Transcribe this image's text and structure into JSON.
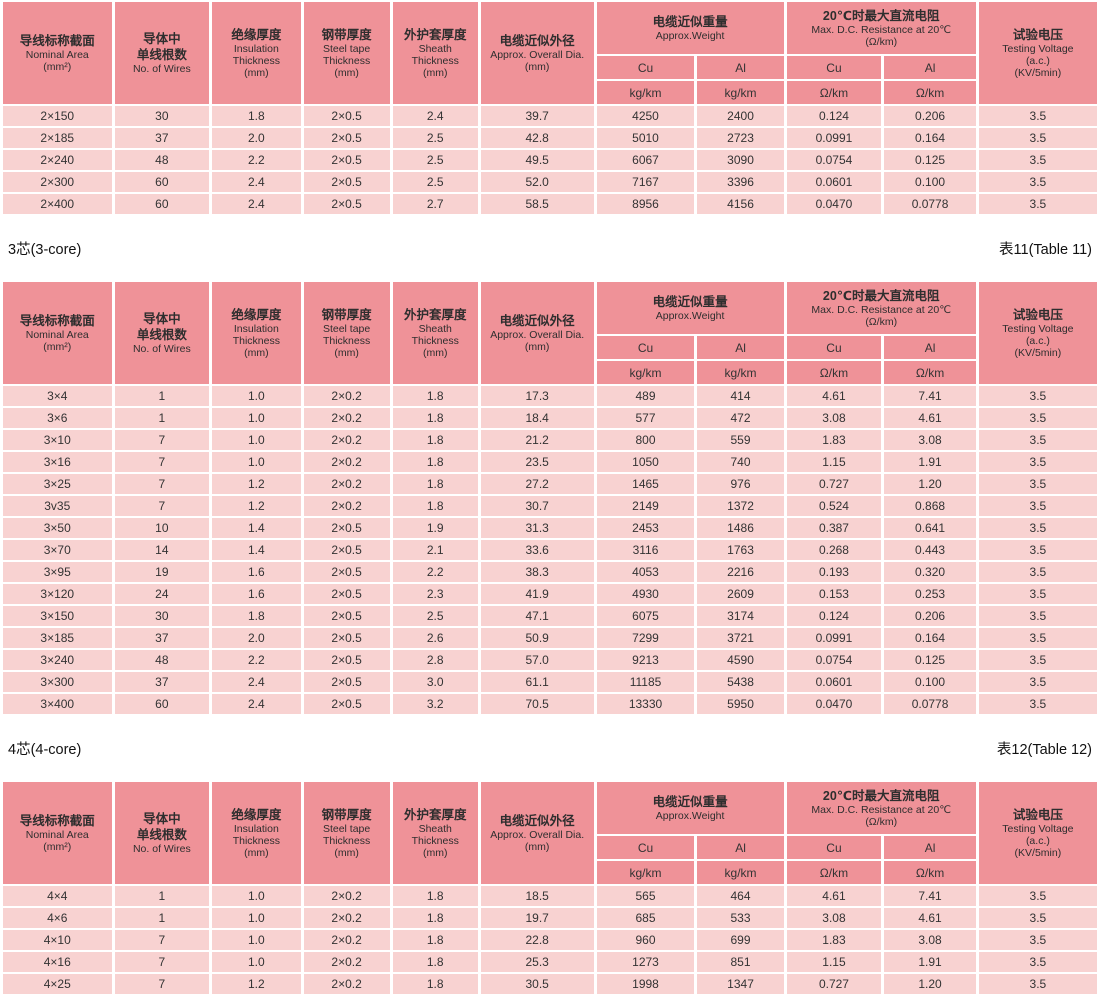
{
  "colors": {
    "header_bg": "#ef9298",
    "row_bg": "#f8d2d1",
    "text": "#333333",
    "page_bg": "#ffffff"
  },
  "columns": {
    "nominal_area": {
      "zh": "导线标称截面",
      "en": "Nominal Area",
      "unit": "(mm²)"
    },
    "no_of_wires": {
      "zh1": "导体中",
      "zh2": "单线根数",
      "en": "No. of Wires"
    },
    "insulation": {
      "zh": "绝缘厚度",
      "en1": "Insulation",
      "en2": "Thickness",
      "unit": "(mm)"
    },
    "steel_tape": {
      "zh": "钢带厚度",
      "en1": "Steel tape",
      "en2": "Thickness",
      "unit": "(mm)"
    },
    "sheath": {
      "zh": "外护套厚度",
      "en1": "Sheath",
      "en2": "Thickness",
      "unit": "(mm)"
    },
    "overall_dia": {
      "zh": "电缆近似外径",
      "en": "Approx. Overall Dia.",
      "unit": "(mm)"
    },
    "weight_group": {
      "zh": "电缆近似重量",
      "en": "Approx.Weight"
    },
    "resistance_group": {
      "zh": "20℃时最大直流电阻",
      "en": "Max. D.C. Resistance at 20℃",
      "unit": "(Ω/km)"
    },
    "sub_cu": "Cu",
    "sub_al": "Al",
    "weight_unit": "kg/km",
    "resistance_unit": "Ω/km",
    "testing_voltage": {
      "zh": "试验电压",
      "en1": "Testing Voltage",
      "en2": "(a.c.)",
      "en3": "(KV/5min)"
    }
  },
  "tables": [
    {
      "section": "",
      "table_label": "",
      "rows": [
        [
          "2×150",
          "30",
          "1.8",
          "2×0.5",
          "2.4",
          "39.7",
          "4250",
          "2400",
          "0.124",
          "0.206",
          "3.5"
        ],
        [
          "2×185",
          "37",
          "2.0",
          "2×0.5",
          "2.5",
          "42.8",
          "5010",
          "2723",
          "0.0991",
          "0.164",
          "3.5"
        ],
        [
          "2×240",
          "48",
          "2.2",
          "2×0.5",
          "2.5",
          "49.5",
          "6067",
          "3090",
          "0.0754",
          "0.125",
          "3.5"
        ],
        [
          "2×300",
          "60",
          "2.4",
          "2×0.5",
          "2.5",
          "52.0",
          "7167",
          "3396",
          "0.0601",
          "0.100",
          "3.5"
        ],
        [
          "2×400",
          "60",
          "2.4",
          "2×0.5",
          "2.7",
          "58.5",
          "8956",
          "4156",
          "0.0470",
          "0.0778",
          "3.5"
        ]
      ]
    },
    {
      "section": "3芯(3-core)",
      "table_label": "表11(Table 11)",
      "rows": [
        [
          "3×4",
          "1",
          "1.0",
          "2×0.2",
          "1.8",
          "17.3",
          "489",
          "414",
          "4.61",
          "7.41",
          "3.5"
        ],
        [
          "3×6",
          "1",
          "1.0",
          "2×0.2",
          "1.8",
          "18.4",
          "577",
          "472",
          "3.08",
          "4.61",
          "3.5"
        ],
        [
          "3×10",
          "7",
          "1.0",
          "2×0.2",
          "1.8",
          "21.2",
          "800",
          "559",
          "1.83",
          "3.08",
          "3.5"
        ],
        [
          "3×16",
          "7",
          "1.0",
          "2×0.2",
          "1.8",
          "23.5",
          "1050",
          "740",
          "1.15",
          "1.91",
          "3.5"
        ],
        [
          "3×25",
          "7",
          "1.2",
          "2×0.2",
          "1.8",
          "27.2",
          "1465",
          "976",
          "0.727",
          "1.20",
          "3.5"
        ],
        [
          "3v35",
          "7",
          "1.2",
          "2×0.2",
          "1.8",
          "30.7",
          "2149",
          "1372",
          "0.524",
          "0.868",
          "3.5"
        ],
        [
          "3×50",
          "10",
          "1.4",
          "2×0.5",
          "1.9",
          "31.3",
          "2453",
          "1486",
          "0.387",
          "0.641",
          "3.5"
        ],
        [
          "3×70",
          "14",
          "1.4",
          "2×0.5",
          "2.1",
          "33.6",
          "3116",
          "1763",
          "0.268",
          "0.443",
          "3.5"
        ],
        [
          "3×95",
          "19",
          "1.6",
          "2×0.5",
          "2.2",
          "38.3",
          "4053",
          "2216",
          "0.193",
          "0.320",
          "3.5"
        ],
        [
          "3×120",
          "24",
          "1.6",
          "2×0.5",
          "2.3",
          "41.9",
          "4930",
          "2609",
          "0.153",
          "0.253",
          "3.5"
        ],
        [
          "3×150",
          "30",
          "1.8",
          "2×0.5",
          "2.5",
          "47.1",
          "6075",
          "3174",
          "0.124",
          "0.206",
          "3.5"
        ],
        [
          "3×185",
          "37",
          "2.0",
          "2×0.5",
          "2.6",
          "50.9",
          "7299",
          "3721",
          "0.0991",
          "0.164",
          "3.5"
        ],
        [
          "3×240",
          "48",
          "2.2",
          "2×0.5",
          "2.8",
          "57.0",
          "9213",
          "4590",
          "0.0754",
          "0.125",
          "3.5"
        ],
        [
          "3×300",
          "37",
          "2.4",
          "2×0.5",
          "3.0",
          "61.1",
          "11185",
          "5438",
          "0.0601",
          "0.100",
          "3.5"
        ],
        [
          "3×400",
          "60",
          "2.4",
          "2×0.5",
          "3.2",
          "70.5",
          "13330",
          "5950",
          "0.0470",
          "0.0778",
          "3.5"
        ]
      ]
    },
    {
      "section": "4芯(4-core)",
      "table_label": "表12(Table 12)",
      "rows": [
        [
          "4×4",
          "1",
          "1.0",
          "2×0.2",
          "1.8",
          "18.5",
          "565",
          "464",
          "4.61",
          "7.41",
          "3.5"
        ],
        [
          "4×6",
          "1",
          "1.0",
          "2×0.2",
          "1.8",
          "19.7",
          "685",
          "533",
          "3.08",
          "4.61",
          "3.5"
        ],
        [
          "4×10",
          "7",
          "1.0",
          "2×0.2",
          "1.8",
          "22.8",
          "960",
          "699",
          "1.83",
          "3.08",
          "3.5"
        ],
        [
          "4×16",
          "7",
          "1.0",
          "2×0.2",
          "1.8",
          "25.3",
          "1273",
          "851",
          "1.15",
          "1.91",
          "3.5"
        ],
        [
          "4×25",
          "7",
          "1.2",
          "2×0.2",
          "1.8",
          "30.5",
          "1998",
          "1347",
          "0.727",
          "1.20",
          "3.5"
        ]
      ]
    }
  ]
}
